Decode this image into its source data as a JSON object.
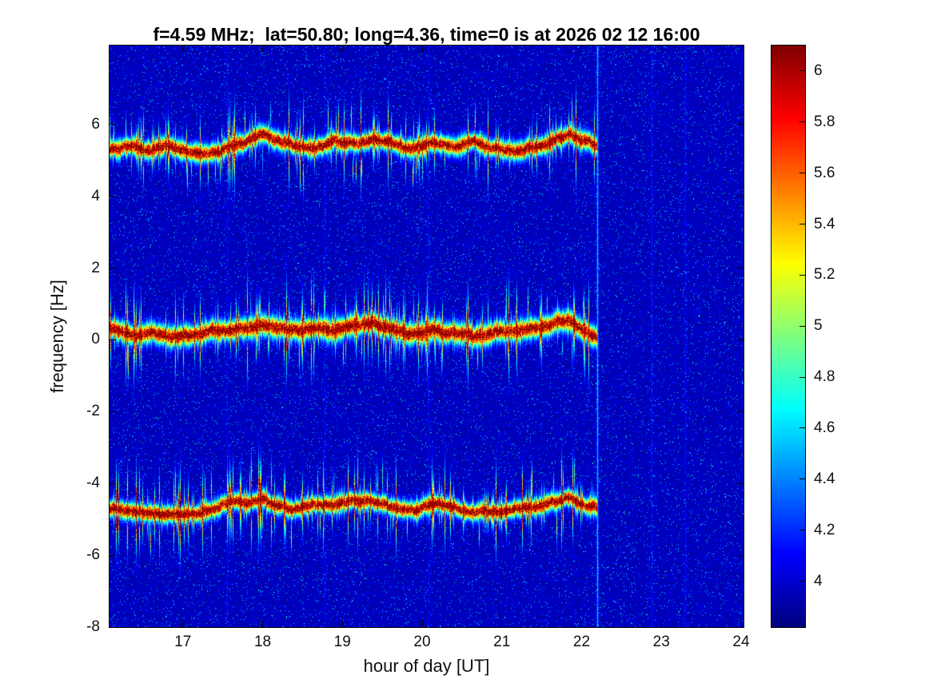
{
  "chart_data": {
    "type": "heatmap",
    "title": "f=4.59 MHz;  lat=50.80; long=4.36, time=0 is at 2026 02 12 16:00",
    "xlabel": "hour of day [UT]",
    "ylabel": "frequency [Hz]",
    "xlim": [
      16.08,
      24.03
    ],
    "ylim": [
      -8,
      8.2
    ],
    "xticks": [
      17,
      18,
      19,
      20,
      21,
      22,
      23,
      24
    ],
    "yticks": [
      6,
      4,
      2,
      0,
      -2,
      -4,
      -6,
      -8
    ],
    "colormap": "jet",
    "colorbar": {
      "ticks": [
        6,
        5.8,
        5.6,
        5.4,
        5.2,
        5,
        4.8,
        4.6,
        4.4,
        4.2,
        4
      ],
      "clim": [
        3.82,
        6.1
      ]
    },
    "noise_floor_level": 4.0,
    "data_end_hour": 22.2,
    "series": [
      {
        "name": "upper-doppler-trace",
        "width_factor": 1.0,
        "hours": [
          16.1,
          16.35,
          16.6,
          16.85,
          17.1,
          17.35,
          17.6,
          17.85,
          18.0,
          18.15,
          18.4,
          18.65,
          18.9,
          19.15,
          19.4,
          19.65,
          19.9,
          20.15,
          20.4,
          20.65,
          20.9,
          21.15,
          21.4,
          21.65,
          21.85,
          22.0,
          22.2
        ],
        "center_hz": [
          5.3,
          5.4,
          5.3,
          5.42,
          5.25,
          5.15,
          5.4,
          5.55,
          5.75,
          5.6,
          5.45,
          5.35,
          5.5,
          5.45,
          5.6,
          5.45,
          5.3,
          5.5,
          5.4,
          5.5,
          5.3,
          5.25,
          5.35,
          5.55,
          5.75,
          5.55,
          5.4
        ]
      },
      {
        "name": "carrier-doppler-trace",
        "width_factor": 1.15,
        "hours": [
          16.1,
          16.35,
          16.6,
          16.85,
          17.1,
          17.35,
          17.6,
          17.85,
          18.0,
          18.15,
          18.4,
          18.65,
          18.9,
          19.15,
          19.4,
          19.65,
          19.9,
          20.15,
          20.4,
          20.65,
          20.9,
          21.15,
          21.4,
          21.65,
          21.85,
          22.0,
          22.2
        ],
        "center_hz": [
          0.3,
          0.15,
          0.2,
          0.05,
          0.15,
          0.3,
          0.25,
          0.35,
          0.45,
          0.3,
          0.25,
          0.35,
          0.3,
          0.45,
          0.5,
          0.3,
          0.15,
          0.3,
          0.2,
          0.1,
          0.2,
          0.25,
          0.3,
          0.45,
          0.55,
          0.3,
          0.1
        ]
      },
      {
        "name": "lower-doppler-trace",
        "width_factor": 0.95,
        "hours": [
          16.1,
          16.35,
          16.6,
          16.85,
          17.1,
          17.35,
          17.6,
          17.85,
          18.0,
          18.15,
          18.4,
          18.65,
          18.9,
          19.15,
          19.4,
          19.65,
          19.9,
          20.15,
          20.4,
          20.65,
          20.9,
          21.15,
          21.4,
          21.65,
          21.85,
          22.0,
          22.2
        ],
        "center_hz": [
          -4.7,
          -4.8,
          -4.85,
          -4.9,
          -4.85,
          -4.7,
          -4.55,
          -4.5,
          -4.4,
          -4.6,
          -4.7,
          -4.55,
          -4.6,
          -4.45,
          -4.55,
          -4.7,
          -4.75,
          -4.6,
          -4.65,
          -4.85,
          -4.8,
          -4.75,
          -4.6,
          -4.5,
          -4.4,
          -4.55,
          -4.7
        ]
      }
    ],
    "vertical_streaks": [
      {
        "hour": 17.55,
        "strength": 0.12
      },
      {
        "hour": 18.78,
        "strength": 0.1
      },
      {
        "hour": 20.08,
        "strength": 0.12
      },
      {
        "hour": 22.2,
        "strength": 0.55
      },
      {
        "hour": 22.88,
        "strength": 0.15
      },
      {
        "hour": 23.3,
        "strength": 0.12
      }
    ]
  }
}
